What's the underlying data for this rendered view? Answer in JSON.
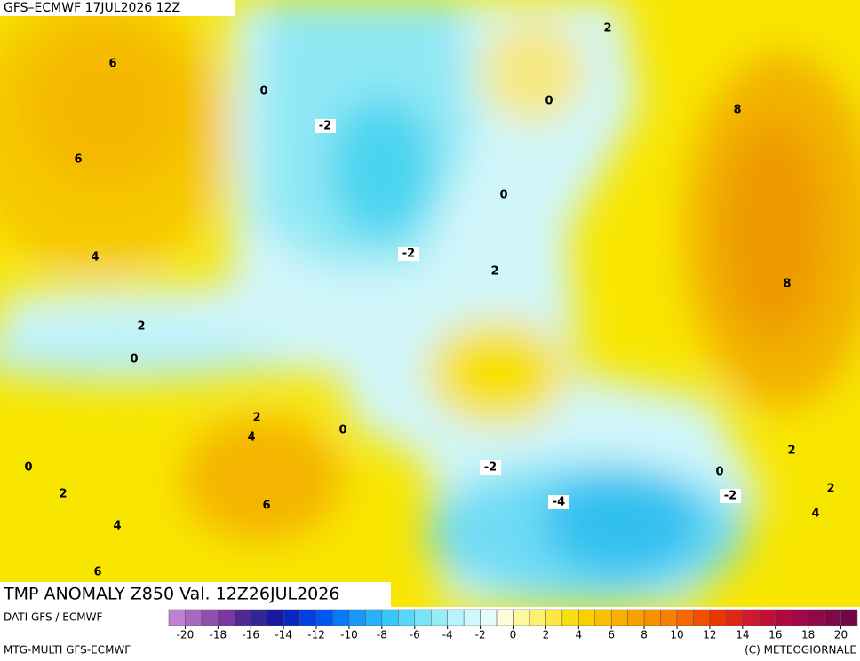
{
  "header": "GFS–ECMWF 17JUL2026 12Z",
  "title": "TMP ANOMALY Z850 Val. 12Z26JUL2026",
  "source": "DATI GFS / ECMWF",
  "model": "MTG-MULTI GFS-ECMWF",
  "copyright": "(C) METEOGIORNALE",
  "contour_labels": [
    "6",
    "6",
    "4",
    "2",
    "0",
    "0",
    "-2",
    "-2",
    "2",
    "0",
    "0",
    "8",
    "8",
    "2",
    "2",
    "4",
    "0",
    "2",
    "4",
    "6",
    "0",
    "-2",
    "-4",
    "0",
    "-2",
    "2",
    "2",
    "4",
    "6"
  ],
  "colorbar": {
    "vlim": [
      -21,
      21
    ],
    "colors": [
      "#c080d0",
      "#a868c0",
      "#9050b0",
      "#7838a0",
      "#502890",
      "#302890",
      "#1818a0",
      "#0828c0",
      "#0040e0",
      "#0058f0",
      "#0878f8",
      "#1898f8",
      "#28b0f8",
      "#38c8f8",
      "#58d8f8",
      "#78e4f8",
      "#98ecf8",
      "#b8f4fc",
      "#d0f8fc",
      "#e4fcfc",
      "#fcfcd8",
      "#fcf8a0",
      "#fcf070",
      "#fce840",
      "#f8e010",
      "#f8d000",
      "#f8c000",
      "#f8b000",
      "#f8a000",
      "#f89000",
      "#f88000",
      "#f86800",
      "#f05000",
      "#e83800",
      "#e02818",
      "#d01830",
      "#c01038",
      "#b00840",
      "#a00848",
      "#900848",
      "#800848",
      "#700848"
    ],
    "ticks": [
      -20,
      -18,
      -16,
      -14,
      -12,
      -10,
      -8,
      -6,
      -4,
      -2,
      0,
      2,
      4,
      6,
      8,
      10,
      12,
      14,
      16,
      18,
      20
    ]
  }
}
